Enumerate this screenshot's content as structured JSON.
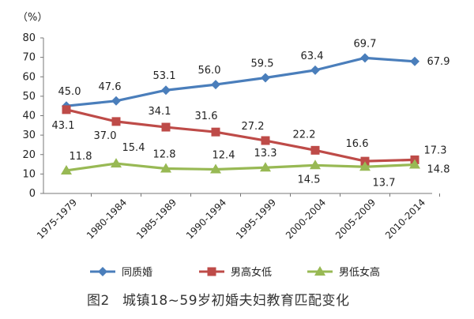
{
  "chart_data": {
    "type": "line",
    "unit_label": "（%）",
    "categories": [
      "1975-1979",
      "1980-1984",
      "1985-1989",
      "1990-1994",
      "1995-1999",
      "2000-2004",
      "2005-2009",
      "2010-2014"
    ],
    "ylim": [
      0,
      80
    ],
    "yticks": [
      0,
      10,
      20,
      30,
      40,
      50,
      60,
      70,
      80
    ],
    "grid": false,
    "legend_position": "bottom",
    "series": [
      {
        "name": "同质婚",
        "color": "#4a7ebb",
        "marker": "diamond",
        "values": [
          45.0,
          47.6,
          53.1,
          56.0,
          59.5,
          63.4,
          69.7,
          67.9
        ],
        "labels": [
          "45.0",
          "47.6",
          "53.1",
          "56.0",
          "59.5",
          "63.4",
          "69.7",
          "67.9"
        ]
      },
      {
        "name": "男高女低",
        "color": "#be4b48",
        "marker": "square",
        "values": [
          43.1,
          37.0,
          34.1,
          31.6,
          27.2,
          22.2,
          16.6,
          17.3
        ],
        "labels": [
          "43.1",
          "37.0",
          "34.1",
          "31.6",
          "27.2",
          "22.2",
          "16.6",
          "17.3"
        ]
      },
      {
        "name": "男低女高",
        "color": "#98b954",
        "marker": "triangle",
        "values": [
          11.8,
          15.4,
          12.8,
          12.4,
          13.3,
          14.5,
          13.7,
          14.8
        ],
        "labels": [
          "11.8",
          "15.4",
          "12.8",
          "12.4",
          "13.3",
          "14.5",
          "13.7",
          "14.8"
        ]
      }
    ]
  },
  "caption": {
    "figure_number": "图2",
    "title": "城镇18~59岁初婚夫妇教育匹配变化"
  }
}
